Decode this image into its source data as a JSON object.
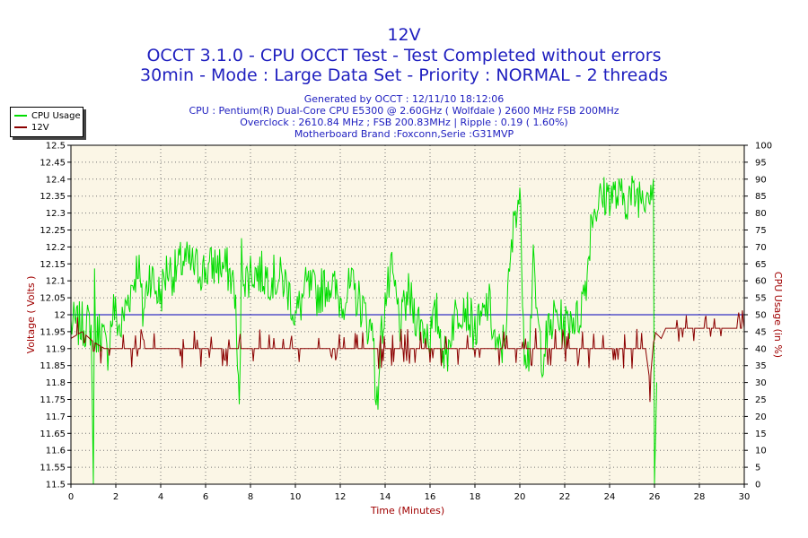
{
  "header": {
    "title": "12V",
    "line1": "OCCT 3.1.0 - CPU OCCT Test - Test Completed without errors",
    "line2": "30min - Mode : Large Data Set - Priority : NORMAL - 2 threads",
    "info": [
      "Generated by OCCT : 12/11/10 18:12:06",
      "CPU : Pentium(R) Dual-Core CPU E5300 @ 2.60GHz ( Wolfdale ) 2600 MHz FSB 200MHz",
      "Overclock : 2610.84 MHz ; FSB 200.83MHz | Ripple : 0.19 ( 1.60%)",
      "Motherboard Brand :Foxconn,Serie :G31MVP"
    ]
  },
  "colors": {
    "cpu": "#00dd00",
    "volt": "#8b0000",
    "ref": "#0000bb",
    "plot_bg": "#fbf6e6",
    "title": "#1f1fbf",
    "axis_label": "#a00000"
  },
  "chart_data": {
    "type": "line",
    "title": "12V",
    "xlabel": "Time (Minutes)",
    "ylabel_left": "Voltage ( Volts )",
    "ylabel_right": "CPU Usage (in %)",
    "xlim": [
      0,
      30
    ],
    "ylim_left": [
      11.5,
      12.5
    ],
    "ylim_right": [
      0,
      100
    ],
    "x_ticks": [
      "0",
      "2",
      "4",
      "6",
      "8",
      "10",
      "12",
      "14",
      "16",
      "18",
      "20",
      "22",
      "24",
      "26",
      "28",
      "30"
    ],
    "y_left_ticks": [
      "11.5",
      "11.55",
      "11.6",
      "11.65",
      "11.7",
      "11.75",
      "11.8",
      "11.85",
      "11.9",
      "11.95",
      "12",
      "12.05",
      "12.1",
      "12.15",
      "12.2",
      "12.25",
      "12.3",
      "12.35",
      "12.4",
      "12.45",
      "12.5"
    ],
    "y_right_ticks": [
      "0",
      "5",
      "10",
      "15",
      "20",
      "25",
      "30",
      "35",
      "40",
      "45",
      "50",
      "55",
      "60",
      "65",
      "70",
      "75",
      "80",
      "85",
      "90",
      "95",
      "100"
    ],
    "grid": true,
    "legend_position": "top-left",
    "reference_line": {
      "y": 12.0
    },
    "series": [
      {
        "name": "CPU Usage",
        "axis": "right",
        "x": [
          0,
          0.5,
          0.9,
          1.0,
          1.05,
          1.1,
          1.3,
          1.6,
          1.9,
          2.2,
          2.5,
          2.8,
          3.0,
          3.2,
          3.5,
          3.8,
          4.0,
          4.3,
          4.6,
          5.0,
          5.5,
          6.0,
          6.5,
          7.0,
          7.3,
          7.5,
          7.6,
          7.8,
          8.0,
          8.5,
          9.0,
          9.5,
          9.8,
          10.0,
          10.5,
          11.0,
          11.5,
          12.0,
          12.5,
          13.0,
          13.3,
          13.5,
          13.6,
          13.8,
          14.0,
          14.3,
          14.7,
          15.0,
          15.5,
          16.0,
          16.3,
          16.7,
          17.0,
          17.5,
          18.0,
          18.3,
          18.6,
          19.0,
          19.3,
          19.5,
          19.8,
          20.0,
          20.2,
          20.4,
          20.6,
          20.8,
          21.0,
          21.3,
          21.6,
          22.0,
          22.3,
          22.6,
          23.0,
          23.2,
          23.5,
          24.0,
          24.5,
          25.0,
          25.5,
          25.8,
          25.95,
          26.0,
          26.1
        ],
        "values": [
          47,
          47,
          47,
          0,
          62,
          42,
          47,
          38,
          52,
          45,
          54,
          60,
          66,
          50,
          63,
          57,
          56,
          64,
          62,
          66,
          64,
          63,
          65,
          63,
          58,
          20,
          67,
          60,
          63,
          62,
          61,
          60,
          55,
          49,
          58,
          56,
          60,
          54,
          58,
          52,
          46,
          46,
          18,
          42,
          54,
          62,
          46,
          56,
          48,
          44,
          50,
          36,
          48,
          54,
          45,
          48,
          54,
          38,
          42,
          58,
          82,
          85,
          42,
          38,
          64,
          47,
          38,
          45,
          50,
          46,
          50,
          48,
          62,
          80,
          83,
          86,
          84,
          85,
          86,
          88,
          90,
          0,
          30
        ]
      },
      {
        "name": "12V",
        "axis": "left",
        "x": [
          0,
          0.5,
          1.0,
          1.5,
          2.0,
          3.0,
          4.0,
          5.0,
          6.0,
          7.0,
          8.0,
          9.0,
          10.0,
          11.0,
          12.0,
          13.0,
          14.0,
          15.0,
          16.0,
          17.0,
          18.0,
          19.0,
          20.0,
          21.0,
          22.0,
          23.0,
          24.0,
          25.0,
          25.6,
          25.8,
          26.0,
          26.3,
          26.5,
          27.0,
          28.0,
          29.0,
          30.0
        ],
        "values": [
          11.93,
          11.95,
          11.92,
          11.9,
          11.9,
          11.9,
          11.9,
          11.9,
          11.9,
          11.9,
          11.9,
          11.9,
          11.9,
          11.9,
          11.9,
          11.9,
          11.9,
          11.9,
          11.9,
          11.9,
          11.9,
          11.9,
          11.9,
          11.9,
          11.9,
          11.9,
          11.9,
          11.9,
          11.9,
          11.8,
          11.95,
          11.93,
          11.96,
          11.96,
          11.96,
          11.96,
          11.96
        ]
      }
    ]
  }
}
